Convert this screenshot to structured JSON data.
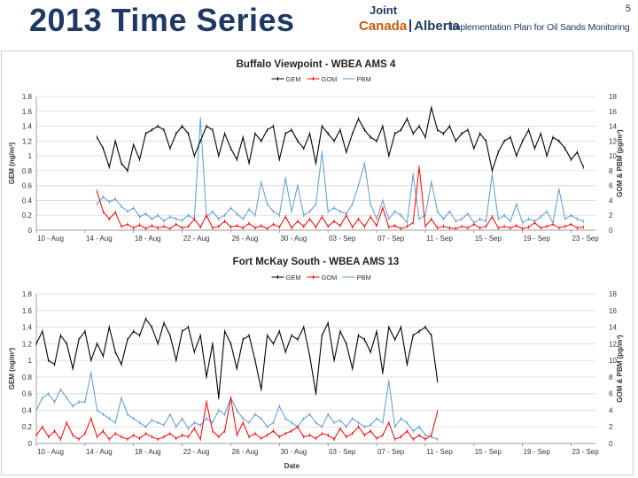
{
  "header": {
    "title": "2013 Time Series",
    "page_number": "5",
    "logo": {
      "joint": "Joint",
      "canada": "Canada",
      "alberta": "Alberta",
      "plan": "Implementation Plan for Oil Sands Monitoring"
    }
  },
  "colors": {
    "gem": "#000000",
    "gom": "#ff0000",
    "pbm": "#5b9bd5",
    "grid": "#d9d9d9"
  },
  "chart_data": [
    {
      "type": "line",
      "title": "Buffalo Viewpoint - WBEA AMS 4",
      "xlabel": "",
      "ylabel": "GEM (ng/m³)",
      "y2label": "GOM & PBM (pg/m³)",
      "x_range_days": [
        0,
        46
      ],
      "ylim": [
        0,
        1.8
      ],
      "y2lim": [
        0,
        18
      ],
      "yticks": [
        "0",
        "0.2",
        "0.4",
        "0.6",
        "0.8",
        "1",
        "1.2",
        "1.4",
        "1.6",
        "1.8"
      ],
      "y2ticks": [
        "0",
        "2",
        "4",
        "6",
        "8",
        "10",
        "12",
        "14",
        "16",
        "18"
      ],
      "xticks": [
        "10 - Aug",
        "14 - Aug",
        "18 - Aug",
        "22 - Aug",
        "26 - Aug",
        "30 - Aug",
        "03 - Sep",
        "07 - Sep",
        "11 - Sep",
        "15 - Sep",
        "19 - Sep",
        "23 - Sep"
      ],
      "legend": [
        "GEM",
        "GOM",
        "PBM"
      ],
      "series": [
        {
          "name": "GEM",
          "axis": "left",
          "x": [
            5,
            5.5,
            6,
            6.5,
            7,
            7.5,
            8,
            8.5,
            9,
            9.5,
            10,
            10.5,
            11,
            11.5,
            12,
            12.5,
            13,
            13.5,
            14,
            14.5,
            15,
            15.5,
            16,
            16.5,
            17,
            17.5,
            18,
            18.5,
            19,
            19.5,
            20,
            20.5,
            21,
            21.5,
            22,
            22.5,
            23,
            23.5,
            24,
            24.5,
            25,
            25.5,
            26,
            26.5,
            27,
            27.5,
            28,
            28.5,
            29,
            29.5,
            30,
            30.5,
            31,
            31.5,
            32,
            32.5,
            33,
            33.5,
            34,
            34.5,
            35,
            35.5,
            36,
            36.5,
            37,
            37.5,
            38,
            38.5,
            39,
            39.5,
            40,
            40.5,
            41,
            41.5,
            42,
            42.5,
            43,
            43.5,
            44,
            44.5,
            45
          ],
          "values": [
            1.25,
            1.1,
            0.85,
            1.2,
            0.9,
            0.8,
            1.15,
            0.95,
            1.3,
            1.35,
            1.4,
            1.35,
            1.1,
            1.3,
            1.4,
            1.3,
            1.0,
            1.2,
            1.4,
            1.35,
            1.0,
            1.3,
            1.1,
            0.95,
            1.25,
            0.9,
            1.3,
            1.2,
            1.35,
            1.4,
            0.95,
            1.3,
            1.35,
            1.2,
            1.1,
            1.3,
            0.9,
            1.4,
            1.3,
            1.2,
            1.35,
            1.05,
            1.3,
            1.5,
            1.35,
            1.25,
            1.2,
            1.4,
            1.0,
            1.3,
            1.35,
            1.5,
            1.3,
            1.4,
            1.25,
            1.65,
            1.35,
            1.3,
            1.4,
            1.2,
            1.3,
            1.35,
            1.1,
            1.3,
            1.2,
            0.8,
            1.05,
            1.2,
            1.25,
            1.0,
            1.2,
            1.35,
            1.1,
            1.3,
            1.0,
            1.25,
            1.2,
            1.1,
            0.95,
            1.05,
            0.85
          ]
        },
        {
          "name": "GOM",
          "axis": "right",
          "x": [
            5,
            5.5,
            6,
            6.5,
            7,
            7.5,
            8,
            8.5,
            9,
            9.5,
            10,
            10.5,
            11,
            11.5,
            12,
            12.5,
            13,
            13.5,
            14,
            14.5,
            15,
            15.5,
            16,
            16.5,
            17,
            17.5,
            18,
            18.5,
            19,
            19.5,
            20,
            20.5,
            21,
            21.5,
            22,
            22.5,
            23,
            23.5,
            24,
            24.5,
            25,
            25.5,
            26,
            26.5,
            27,
            27.5,
            28,
            28.5,
            29,
            29.5,
            30,
            30.5,
            31,
            31.5,
            32,
            32.5,
            33,
            33.5,
            34,
            34.5,
            35,
            35.5,
            36,
            36.5,
            37,
            37.5,
            38,
            38.5,
            39,
            39.5,
            40,
            40.5,
            41,
            41.5,
            42,
            42.5,
            43,
            43.5,
            44,
            44.5,
            45
          ],
          "values": [
            5.2,
            2.5,
            1.5,
            2.4,
            0.5,
            0.8,
            0.3,
            0.7,
            0.2,
            0.6,
            0.3,
            0.5,
            0.2,
            0.8,
            0.3,
            0.5,
            1.5,
            0.4,
            2.0,
            0.3,
            0.5,
            1.2,
            0.4,
            0.6,
            0.3,
            0.9,
            0.3,
            0.6,
            0.2,
            0.8,
            0.4,
            1.8,
            0.3,
            1.2,
            0.5,
            1.5,
            0.4,
            1.8,
            0.5,
            1.2,
            0.6,
            2.0,
            0.4,
            1.5,
            0.5,
            1.8,
            0.6,
            3.0,
            0.4,
            0.6,
            0.2,
            0.5,
            1.0,
            8.5,
            0.5,
            1.5,
            0.3,
            0.5,
            0.3,
            0.2,
            0.5,
            0.3,
            0.8,
            0.3,
            0.5,
            1.8,
            0.3,
            0.5,
            0.3,
            0.6,
            0.2,
            0.4,
            1.0,
            0.3,
            0.5,
            0.8,
            0.3,
            0.5,
            0.8,
            0.3,
            0.4
          ]
        },
        {
          "name": "PBM",
          "axis": "right",
          "x": [
            5,
            5.5,
            6,
            6.5,
            7,
            7.5,
            8,
            8.5,
            9,
            9.5,
            10,
            10.5,
            11,
            11.5,
            12,
            12.5,
            13,
            13.5,
            14,
            14.5,
            15,
            15.5,
            16,
            16.5,
            17,
            17.5,
            18,
            18.5,
            19,
            19.5,
            20,
            20.5,
            21,
            21.5,
            22,
            22.5,
            23,
            23.5,
            24,
            24.5,
            25,
            25.5,
            26,
            26.5,
            27,
            27.5,
            28,
            28.5,
            29,
            29.5,
            30,
            30.5,
            31,
            31.5,
            32,
            32.5,
            33,
            33.5,
            34,
            34.5,
            35,
            35.5,
            36,
            36.5,
            37,
            37.5,
            38,
            38.5,
            39,
            39.5,
            40,
            40.5,
            41,
            41.5,
            42,
            42.5,
            43,
            43.5,
            44,
            44.5,
            45
          ],
          "values": [
            3.5,
            4.5,
            3.8,
            4.2,
            3.2,
            2.5,
            3.0,
            1.8,
            2.2,
            1.5,
            2.0,
            1.2,
            1.8,
            1.5,
            1.3,
            2.0,
            1.5,
            15.0,
            1.8,
            2.5,
            1.5,
            2.0,
            3.0,
            2.2,
            1.5,
            2.8,
            2.0,
            6.5,
            3.5,
            2.5,
            2.0,
            7.0,
            2.5,
            6.0,
            2.0,
            2.5,
            3.5,
            10.5,
            2.5,
            3.0,
            2.5,
            2.2,
            3.5,
            6.0,
            9.0,
            3.5,
            1.5,
            4.0,
            1.5,
            2.5,
            2.0,
            1.0,
            7.5,
            1.5,
            2.0,
            6.5,
            2.5,
            1.5,
            2.5,
            1.2,
            1.5,
            2.2,
            1.0,
            1.5,
            1.2,
            7.5,
            1.5,
            2.0,
            1.2,
            3.5,
            1.0,
            1.5,
            1.2,
            1.8,
            2.5,
            1.0,
            5.5,
            1.5,
            2.0,
            1.5,
            1.2
          ]
        }
      ]
    },
    {
      "type": "line",
      "title": "Fort McKay South - WBEA AMS 13",
      "xlabel": "Date",
      "ylabel": "GEM (ng/m³)",
      "y2label": "GOM & PBM (pg/m³)",
      "x_range_days": [
        0,
        46
      ],
      "ylim": [
        0,
        1.8
      ],
      "y2lim": [
        0,
        18
      ],
      "yticks": [
        "0",
        "0.2",
        "0.4",
        "0.6",
        "0.8",
        "1",
        "1.2",
        "1.4",
        "1.6",
        "1.8"
      ],
      "y2ticks": [
        "0",
        "2",
        "4",
        "6",
        "8",
        "10",
        "12",
        "14",
        "16",
        "18"
      ],
      "xticks": [
        "10 - Aug",
        "14 - Aug",
        "18 - Aug",
        "22 - Aug",
        "26 - Aug",
        "30 - Aug",
        "03 - Sep",
        "07 - Sep",
        "11 - Sep",
        "15 - Sep",
        "19 - Sep",
        "23 - Sep"
      ],
      "legend": [
        "GEM",
        "GOM",
        "PBM"
      ],
      "series": [
        {
          "name": "GEM",
          "axis": "left",
          "x": [
            0,
            0.5,
            1,
            1.5,
            2,
            2.5,
            3,
            3.5,
            4,
            4.5,
            5,
            5.5,
            6,
            6.5,
            7,
            7.5,
            8,
            8.5,
            9,
            9.5,
            10,
            10.5,
            11,
            11.5,
            12,
            12.5,
            13,
            13.5,
            14,
            14.5,
            15,
            15.5,
            16,
            16.5,
            17,
            17.5,
            18,
            18.5,
            19,
            19.5,
            20,
            20.5,
            21,
            21.5,
            22,
            22.5,
            23,
            23.5,
            24,
            24.5,
            25,
            25.5,
            26,
            26.5,
            27,
            27.5,
            28,
            28.5,
            29,
            29.5,
            30,
            30.5,
            31,
            31.5,
            32,
            32.5,
            33
          ],
          "values": [
            1.2,
            1.35,
            1.0,
            0.95,
            1.3,
            1.2,
            0.9,
            1.25,
            1.35,
            1.0,
            1.2,
            1.05,
            1.4,
            1.1,
            0.95,
            1.25,
            1.35,
            1.3,
            1.5,
            1.4,
            1.2,
            1.45,
            1.3,
            1.0,
            1.35,
            1.4,
            1.1,
            1.3,
            0.8,
            1.2,
            0.55,
            1.35,
            1.2,
            0.9,
            1.25,
            1.3,
            1.0,
            0.65,
            1.3,
            1.2,
            1.35,
            1.1,
            1.3,
            1.25,
            1.4,
            1.05,
            0.6,
            1.3,
            1.45,
            1.0,
            1.35,
            1.2,
            0.9,
            1.3,
            1.25,
            1.1,
            1.35,
            0.85,
            1.4,
            1.25,
            1.4,
            0.95,
            1.3,
            1.35,
            1.4,
            1.3,
            0.75
          ]
        },
        {
          "name": "GOM",
          "axis": "right",
          "x": [
            0,
            0.5,
            1,
            1.5,
            2,
            2.5,
            3,
            3.5,
            4,
            4.5,
            5,
            5.5,
            6,
            6.5,
            7,
            7.5,
            8,
            8.5,
            9,
            9.5,
            10,
            10.5,
            11,
            11.5,
            12,
            12.5,
            13,
            13.5,
            14,
            14.5,
            15,
            15.5,
            16,
            16.5,
            17,
            17.5,
            18,
            18.5,
            19,
            19.5,
            20,
            20.5,
            21,
            21.5,
            22,
            22.5,
            23,
            23.5,
            24,
            24.5,
            25,
            25.5,
            26,
            26.5,
            27,
            27.5,
            28,
            28.5,
            29,
            29.5,
            30,
            30.5,
            31,
            31.5,
            32,
            32.5,
            33
          ],
          "values": [
            1.0,
            2.0,
            0.8,
            1.5,
            0.5,
            2.5,
            1.0,
            0.5,
            1.2,
            3.0,
            0.8,
            1.5,
            0.5,
            1.2,
            0.8,
            0.5,
            1.0,
            0.6,
            1.2,
            0.8,
            0.5,
            0.8,
            1.2,
            0.6,
            1.0,
            0.8,
            1.8,
            0.5,
            5.0,
            1.5,
            0.8,
            1.5,
            5.5,
            1.0,
            2.5,
            0.8,
            1.2,
            0.6,
            1.0,
            1.5,
            0.8,
            1.2,
            1.5,
            2.0,
            0.8,
            1.0,
            0.6,
            1.2,
            1.0,
            0.5,
            1.8,
            0.8,
            1.2,
            2.0,
            1.0,
            1.5,
            0.6,
            1.0,
            2.5,
            0.5,
            0.8,
            1.5,
            0.5,
            1.0,
            0.5,
            1.0,
            3.8
          ]
        },
        {
          "name": "PBM",
          "axis": "right",
          "x": [
            0,
            0.5,
            1,
            1.5,
            2,
            2.5,
            3,
            3.5,
            4,
            4.5,
            5,
            5.5,
            6,
            6.5,
            7,
            7.5,
            8,
            8.5,
            9,
            9.5,
            10,
            10.5,
            11,
            11.5,
            12,
            12.5,
            13,
            13.5,
            14,
            14.5,
            15,
            15.5,
            16,
            16.5,
            17,
            17.5,
            18,
            18.5,
            19,
            19.5,
            20,
            20.5,
            21,
            21.5,
            22,
            22.5,
            23,
            23.5,
            24,
            24.5,
            25,
            25.5,
            26,
            26.5,
            27,
            27.5,
            28,
            28.5,
            29,
            29.5,
            30,
            30.5,
            31,
            31.5,
            32,
            32.5,
            33
          ],
          "values": [
            4.0,
            5.5,
            6.0,
            5.0,
            6.5,
            5.5,
            4.5,
            5.0,
            5.0,
            8.5,
            4.0,
            3.5,
            3.0,
            2.5,
            5.5,
            3.5,
            3.0,
            2.5,
            2.0,
            2.8,
            2.5,
            2.2,
            3.5,
            2.0,
            3.0,
            1.8,
            2.5,
            2.2,
            3.0,
            2.5,
            4.0,
            3.5,
            5.5,
            4.0,
            3.0,
            2.5,
            3.5,
            3.0,
            2.0,
            2.5,
            4.5,
            3.0,
            2.5,
            2.0,
            3.0,
            3.5,
            2.5,
            2.0,
            3.5,
            2.5,
            2.8,
            2.0,
            3.0,
            2.5,
            2.0,
            2.2,
            3.0,
            2.5,
            7.5,
            2.0,
            3.0,
            2.5,
            1.5,
            2.0,
            1.0,
            0.8,
            0.5
          ]
        }
      ]
    }
  ]
}
